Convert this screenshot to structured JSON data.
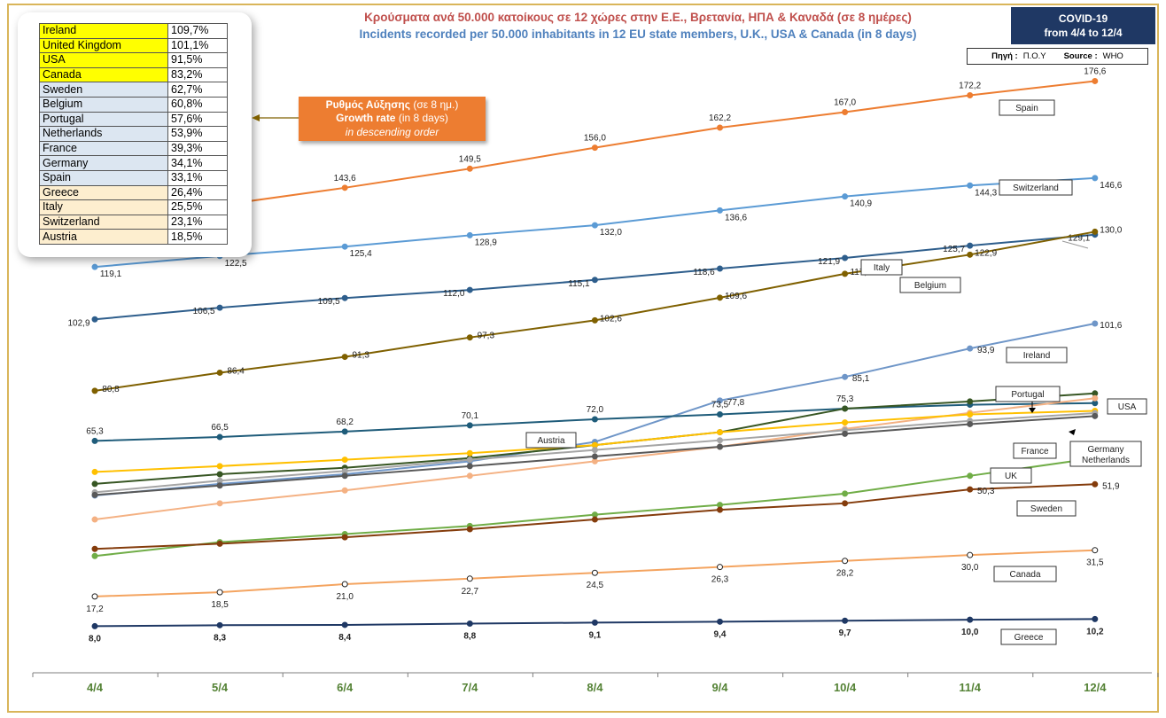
{
  "header": {
    "title_gr": "Κρούσματα ανά 50.000 κατοίκους σε 12 χώρες στην Ε.Ε., Βρετανία, ΗΠΑ & Καναδά (σε 8 ημέρες)",
    "title_en": "Incidents recorded per 50.000 inhabitants in 12 EU state members, U.K., USA & Canada (in 8 days)",
    "covid_line1": "COVID-19",
    "covid_line2": "from 4/4 to 12/4",
    "source_gr_label": "Πηγή :",
    "source_gr_value": "Π.Ο.Υ",
    "source_en_label": "Source :",
    "source_en_value": "WHO"
  },
  "growth_box": {
    "line1_bold": "Ρυθμός Αύξησης",
    "line1_rest": " (σε 8 ημ.)",
    "line2_bold": "Growth rate",
    "line2_rest": " (in 8 days)",
    "line3": "in descending order"
  },
  "ranking": [
    {
      "country": "Ireland",
      "value": "109,7%",
      "color": "#ffff00"
    },
    {
      "country": "United Kingdom",
      "value": "101,1%",
      "color": "#ffff00"
    },
    {
      "country": "USA",
      "value": "91,5%",
      "color": "#ffff00"
    },
    {
      "country": "Canada",
      "value": "83,2%",
      "color": "#ffff00"
    },
    {
      "country": "Sweden",
      "value": "62,7%",
      "color": "#dce6f1"
    },
    {
      "country": "Belgium",
      "value": "60,8%",
      "color": "#dce6f1"
    },
    {
      "country": "Portugal",
      "value": "57,6%",
      "color": "#dce6f1"
    },
    {
      "country": "Netherlands",
      "value": "53,9%",
      "color": "#dce6f1"
    },
    {
      "country": "France",
      "value": "39,3%",
      "color": "#dce6f1"
    },
    {
      "country": "Germany",
      "value": "34,1%",
      "color": "#dce6f1"
    },
    {
      "country": "Spain",
      "value": "33,1%",
      "color": "#dce6f1"
    },
    {
      "country": "Greece",
      "value": "26,4%",
      "color": "#fdeecf"
    },
    {
      "country": "Italy",
      "value": "25,5%",
      "color": "#fdeecf"
    },
    {
      "country": "Switzerland",
      "value": "23,1%",
      "color": "#fdeecf"
    },
    {
      "country": "Austria",
      "value": "18,5%",
      "color": "#fdeecf"
    }
  ],
  "chart_data": {
    "type": "line",
    "title": "Incidents recorded per 50.000 inhabitants in 12 EU state members, U.K., USA & Canada (in 8 days)",
    "categories": [
      "4/4",
      "5/4",
      "6/4",
      "7/4",
      "8/4",
      "9/4",
      "10/4",
      "11/4",
      "12/4"
    ],
    "ylim": [
      0,
      185
    ],
    "grid": false,
    "series": [
      {
        "name": "Spain",
        "color": "#ed7d31",
        "values": [
          132.7,
          138.2,
          143.6,
          149.5,
          156.0,
          162.2,
          167.0,
          172.2,
          176.6
        ],
        "labels": [
          "",
          "",
          "143,6",
          "149,5",
          "156,0",
          "162,2",
          "167,0",
          "172,2",
          "176,6"
        ]
      },
      {
        "name": "Switzerland",
        "color": "#5b9bd5",
        "values": [
          119.1,
          122.5,
          125.4,
          128.9,
          132.0,
          136.6,
          140.9,
          144.3,
          146.6
        ],
        "labels": [
          "119,1",
          "122,5",
          "125,4",
          "128,9",
          "132,0",
          "136,6",
          "140,9",
          "144,3",
          "146,6"
        ]
      },
      {
        "name": "Italy",
        "color": "#2e5e8c",
        "values": [
          102.9,
          106.5,
          109.5,
          112.0,
          115.1,
          118.6,
          121.9,
          125.7,
          129.1
        ],
        "labels": [
          "102,9",
          "106,5",
          "109,5",
          "112,0",
          "115,1",
          "118,6",
          "121,9",
          "125,7",
          "129,1"
        ]
      },
      {
        "name": "Belgium",
        "color": "#7f6000",
        "values": [
          80.8,
          86.4,
          91.3,
          97.3,
          102.6,
          109.6,
          117.0,
          122.9,
          130.0
        ],
        "labels": [
          "80,8",
          "86,4",
          "91,3",
          "97,3",
          "102,6",
          "109,6",
          "117,0",
          "122,9",
          "130,0"
        ]
      },
      {
        "name": "Ireland",
        "color": "#6f96c8",
        "values": [
          48.4,
          52.0,
          55.0,
          59.0,
          65.0,
          77.8,
          85.1,
          93.9,
          101.6
        ],
        "labels": [
          "",
          "",
          "",
          "",
          "",
          "77,8",
          "85,1",
          "93,9",
          "101,6"
        ]
      },
      {
        "name": "Austria",
        "color": "#1f5c7a",
        "values": [
          65.3,
          66.5,
          68.2,
          70.1,
          72.0,
          73.5,
          75.3,
          76.5,
          77.0
        ],
        "labels": [
          "65,3",
          "66,5",
          "68,2",
          "70,1",
          "72,0",
          "73,5",
          "75,3",
          "",
          ""
        ]
      },
      {
        "name": "Portugal",
        "color": "#375623",
        "values": [
          52.0,
          55.0,
          57.0,
          60.0,
          64.0,
          68.0,
          75.3,
          77.5,
          80.0
        ],
        "labels": [
          "",
          "",
          "",
          "",
          "",
          "",
          "",
          "",
          ""
        ]
      },
      {
        "name": "USA",
        "color": "#f4b183",
        "values": [
          41.0,
          46.0,
          50.0,
          54.5,
          59.0,
          63.5,
          69.0,
          74.0,
          78.5
        ],
        "labels": [
          "",
          "",
          "",
          "",
          "",
          "",
          "",
          "",
          ""
        ]
      },
      {
        "name": "France",
        "color": "#ffc000",
        "values": [
          55.7,
          57.5,
          59.5,
          61.5,
          64.0,
          68.0,
          71.0,
          73.5,
          74.6
        ],
        "labels": [
          "",
          "",
          "",
          "",
          "",
          "",
          "",
          "",
          ""
        ]
      },
      {
        "name": "Germany",
        "color": "#a5a5a5",
        "values": [
          49.4,
          53.0,
          56.0,
          59.5,
          62.5,
          65.5,
          68.6,
          71.5,
          73.9
        ],
        "labels": [
          "",
          "",
          "",
          "",
          "",
          "",
          "",
          "",
          ""
        ]
      },
      {
        "name": "Netherlands",
        "color": "#595959",
        "values": [
          48.6,
          51.5,
          54.5,
          57.5,
          60.5,
          63.5,
          67.5,
          70.5,
          73.0
        ],
        "labels": [
          "",
          "",
          "",
          "",
          "",
          "",
          "",
          "",
          ""
        ]
      },
      {
        "name": "UK",
        "color": "#70ad47",
        "values": [
          29.7,
          34.0,
          36.5,
          39.0,
          42.5,
          45.5,
          49.0,
          54.5,
          60.0
        ],
        "labels": [
          "",
          "",
          "",
          "",
          "",
          "",
          "",
          "",
          ""
        ]
      },
      {
        "name": "Sweden",
        "color": "#843c0c",
        "values": [
          31.9,
          33.5,
          35.5,
          38.0,
          41.0,
          44.0,
          46.0,
          50.3,
          51.9
        ],
        "labels": [
          "",
          "",
          "",
          "",
          "",
          "",
          "",
          "50,3",
          "51,9"
        ]
      },
      {
        "name": "Canada",
        "color": "#f4a460",
        "values": [
          17.2,
          18.5,
          21.0,
          22.7,
          24.5,
          26.3,
          28.2,
          30.0,
          31.5
        ],
        "labels": [
          "17,2",
          "18,5",
          "21,0",
          "22,7",
          "24,5",
          "26,3",
          "28,2",
          "30,0",
          "31,5"
        ]
      },
      {
        "name": "Greece",
        "color": "#1f3864",
        "values": [
          8.0,
          8.3,
          8.4,
          8.8,
          9.1,
          9.4,
          9.7,
          10.0,
          10.2
        ],
        "labels": [
          "8,0",
          "8,3",
          "8,4",
          "8,8",
          "9,1",
          "9,4",
          "9,7",
          "10,0",
          "10,2"
        ]
      }
    ],
    "callouts": [
      {
        "text": "Spain",
        "series": "Spain"
      },
      {
        "text": "Switzerland",
        "series": "Switzerland"
      },
      {
        "text": "Italy",
        "series": "Italy"
      },
      {
        "text": "Belgium",
        "series": "Belgium"
      },
      {
        "text": "Ireland",
        "series": "Ireland"
      },
      {
        "text": "Portugal",
        "series": "Portugal"
      },
      {
        "text": "USA",
        "series": "USA"
      },
      {
        "text": "Austria",
        "series": "Austria"
      },
      {
        "text": "France",
        "series": "France"
      },
      {
        "text": "Germany",
        "series": "Germany"
      },
      {
        "text": "Netherlands",
        "series": "Netherlands"
      },
      {
        "text": "UK",
        "series": "UK"
      },
      {
        "text": "Sweden",
        "series": "Sweden"
      },
      {
        "text": "Canada",
        "series": "Canada"
      },
      {
        "text": "Greece",
        "series": "Greece"
      }
    ]
  }
}
